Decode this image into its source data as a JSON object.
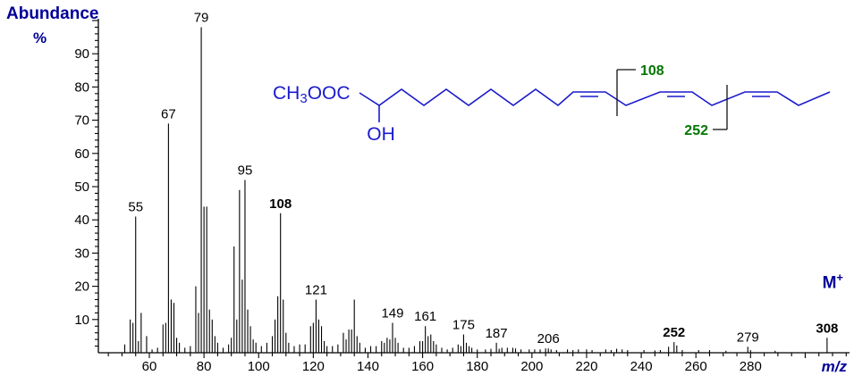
{
  "header": {
    "y_axis_title": "Abundance",
    "y_axis_unit": "%"
  },
  "annotations": {
    "molecular_ion": {
      "base": "M",
      "sup": "+"
    },
    "x_axis_label": "m/z"
  },
  "colors": {
    "axis": "#000000",
    "peaks": "#000000",
    "blue_label": "#000099",
    "green_label": "#007700",
    "structure": "#1a1acc",
    "bracket": "#111111"
  },
  "structure": {
    "ester_group": {
      "main": "CH",
      "sub": "3",
      "rest": "OOC"
    },
    "hydroxyl": "OH",
    "fragments": [
      {
        "label": "108"
      },
      {
        "label": "252"
      }
    ]
  },
  "chart_data": {
    "type": "bar",
    "subtype": "mass_spectrum",
    "title": "",
    "xlabel": "m/z",
    "ylabel": "Abundance %",
    "xlim": [
      42,
      316
    ],
    "ylim": [
      0,
      100
    ],
    "grid": false,
    "x_axis": {
      "tick_minor": 5,
      "tick_major": 20,
      "tick_start": 45,
      "tick_end": 315,
      "label_start": 60,
      "label_end": 280
    },
    "y_axis": {
      "tick_minor": 2,
      "tick_major": 10,
      "tick_start": 2,
      "tick_end": 100,
      "label_start": 10,
      "label_end": 90
    },
    "peaks": [
      [
        51,
        2.5
      ],
      [
        53,
        10
      ],
      [
        54,
        9
      ],
      [
        55,
        41
      ],
      [
        56,
        3.5
      ],
      [
        57,
        12
      ],
      [
        59,
        5
      ],
      [
        61,
        1
      ],
      [
        63,
        1.5
      ],
      [
        65,
        8.5
      ],
      [
        66,
        9
      ],
      [
        67,
        69
      ],
      [
        68,
        16
      ],
      [
        69,
        15
      ],
      [
        70,
        4.5
      ],
      [
        71,
        3
      ],
      [
        73,
        1.5
      ],
      [
        75,
        2
      ],
      [
        77,
        20
      ],
      [
        78,
        12
      ],
      [
        79,
        98
      ],
      [
        80,
        44
      ],
      [
        81,
        44
      ],
      [
        82,
        13
      ],
      [
        83,
        10
      ],
      [
        84,
        5
      ],
      [
        85,
        3
      ],
      [
        87,
        1.5
      ],
      [
        89,
        2.5
      ],
      [
        90,
        4.5
      ],
      [
        91,
        32
      ],
      [
        92,
        10
      ],
      [
        93,
        49
      ],
      [
        94,
        22
      ],
      [
        95,
        52
      ],
      [
        96,
        13
      ],
      [
        97,
        8
      ],
      [
        98,
        4
      ],
      [
        99,
        3
      ],
      [
        101,
        2
      ],
      [
        103,
        3
      ],
      [
        105,
        5
      ],
      [
        106,
        10
      ],
      [
        107,
        17
      ],
      [
        108,
        42
      ],
      [
        109,
        16
      ],
      [
        110,
        6
      ],
      [
        111,
        3
      ],
      [
        113,
        2
      ],
      [
        115,
        2.5
      ],
      [
        117,
        2.5
      ],
      [
        119,
        8
      ],
      [
        120,
        9
      ],
      [
        121,
        16
      ],
      [
        122,
        10
      ],
      [
        123,
        8
      ],
      [
        124,
        3.5
      ],
      [
        125,
        2
      ],
      [
        127,
        2
      ],
      [
        129,
        2.5
      ],
      [
        131,
        6
      ],
      [
        132,
        4
      ],
      [
        133,
        7
      ],
      [
        134,
        7
      ],
      [
        135,
        16
      ],
      [
        136,
        5
      ],
      [
        137,
        3
      ],
      [
        139,
        1.5
      ],
      [
        141,
        2
      ],
      [
        143,
        2
      ],
      [
        145,
        3.5
      ],
      [
        146,
        3
      ],
      [
        147,
        4.5
      ],
      [
        148,
        4
      ],
      [
        149,
        9
      ],
      [
        150,
        4.5
      ],
      [
        151,
        3
      ],
      [
        153,
        1.5
      ],
      [
        155,
        1.5
      ],
      [
        157,
        2
      ],
      [
        159,
        3.5
      ],
      [
        160,
        3.5
      ],
      [
        161,
        8
      ],
      [
        162,
        5
      ],
      [
        163,
        5.5
      ],
      [
        164,
        3.5
      ],
      [
        165,
        2.5
      ],
      [
        167,
        1.5
      ],
      [
        169,
        1
      ],
      [
        171,
        1.5
      ],
      [
        173,
        2.5
      ],
      [
        174,
        2
      ],
      [
        175,
        5.5
      ],
      [
        176,
        3
      ],
      [
        177,
        2
      ],
      [
        178,
        1.5
      ],
      [
        180,
        1
      ],
      [
        183,
        1
      ],
      [
        185,
        1.2
      ],
      [
        187,
        3
      ],
      [
        188,
        1.2
      ],
      [
        189,
        1.5
      ],
      [
        191,
        1.5
      ],
      [
        193,
        1.5
      ],
      [
        194,
        1.3
      ],
      [
        196,
        1
      ],
      [
        199,
        1
      ],
      [
        201,
        1
      ],
      [
        203,
        1
      ],
      [
        205,
        1.3
      ],
      [
        206,
        1.3
      ],
      [
        207,
        1
      ],
      [
        209,
        0.8
      ],
      [
        213,
        1
      ],
      [
        215,
        0.8
      ],
      [
        217,
        1
      ],
      [
        220,
        1
      ],
      [
        222,
        0.8
      ],
      [
        227,
        1
      ],
      [
        229,
        0.8
      ],
      [
        231,
        1.2
      ],
      [
        233,
        1
      ],
      [
        235,
        0.8
      ],
      [
        241,
        0.8
      ],
      [
        245,
        0.7
      ],
      [
        247,
        0.8
      ],
      [
        250,
        1.8
      ],
      [
        252,
        3.2
      ],
      [
        253,
        2.2
      ],
      [
        255,
        0.8
      ],
      [
        261,
        0.8
      ],
      [
        265,
        0.8
      ],
      [
        271,
        0.6
      ],
      [
        279,
        1.8
      ],
      [
        280,
        0.8
      ],
      [
        289,
        0.6
      ],
      [
        308,
        4.5
      ]
    ],
    "labeled_peaks": [
      {
        "mz": 55,
        "pct": 41,
        "label": "55",
        "color": "#000000",
        "bold": false
      },
      {
        "mz": 67,
        "pct": 69,
        "label": "67",
        "color": "#000000",
        "bold": false
      },
      {
        "mz": 79,
        "pct": 98,
        "label": "79",
        "color": "#000000",
        "bold": false
      },
      {
        "mz": 95,
        "pct": 52,
        "label": "95",
        "color": "#000000",
        "bold": false
      },
      {
        "mz": 108,
        "pct": 42,
        "label": "108",
        "color": "#007700",
        "bold": true
      },
      {
        "mz": 121,
        "pct": 16,
        "label": "121",
        "color": "#000000",
        "bold": false
      },
      {
        "mz": 149,
        "pct": 9,
        "label": "149",
        "color": "#000000",
        "bold": false
      },
      {
        "mz": 161,
        "pct": 8,
        "label": "161",
        "color": "#000000",
        "bold": false
      },
      {
        "mz": 175,
        "pct": 5.5,
        "label": "175",
        "color": "#000000",
        "bold": false
      },
      {
        "mz": 187,
        "pct": 3,
        "label": "187",
        "color": "#000000",
        "bold": false
      },
      {
        "mz": 206,
        "pct": 1.3,
        "label": "206",
        "color": "#000000",
        "bold": false
      },
      {
        "mz": 252,
        "pct": 3.2,
        "label": "252",
        "color": "#007700",
        "bold": true
      },
      {
        "mz": 279,
        "pct": 1.8,
        "label": "279",
        "color": "#000000",
        "bold": false
      },
      {
        "mz": 308,
        "pct": 4.5,
        "label": "308",
        "color": "#000099",
        "bold": true
      }
    ]
  }
}
